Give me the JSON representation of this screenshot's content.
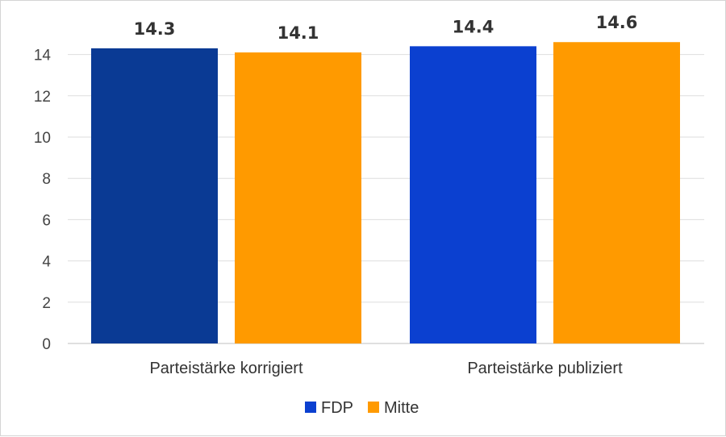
{
  "chart_data": {
    "type": "bar",
    "categories": [
      "Parteistärke korrigiert",
      "Parteistärke publiziert"
    ],
    "series": [
      {
        "name": "FDP",
        "values": [
          14.3,
          14.4
        ],
        "colors": [
          "#0a3a94",
          "#0b40d0"
        ]
      },
      {
        "name": "Mitte",
        "values": [
          14.1,
          14.6
        ],
        "colors": [
          "#ff9a00",
          "#ff9a00"
        ]
      }
    ],
    "data_labels": [
      [
        "14.3",
        "14.1"
      ],
      [
        "14.4",
        "14.6"
      ]
    ],
    "y_ticks": [
      0,
      2,
      4,
      6,
      8,
      10,
      12,
      14
    ],
    "ylim": [
      0,
      15.5
    ],
    "grid": true,
    "legend": {
      "position": "bottom",
      "items": [
        {
          "label": "FDP",
          "color": "#0b40d0"
        },
        {
          "label": "Mitte",
          "color": "#ff9a00"
        }
      ]
    }
  }
}
